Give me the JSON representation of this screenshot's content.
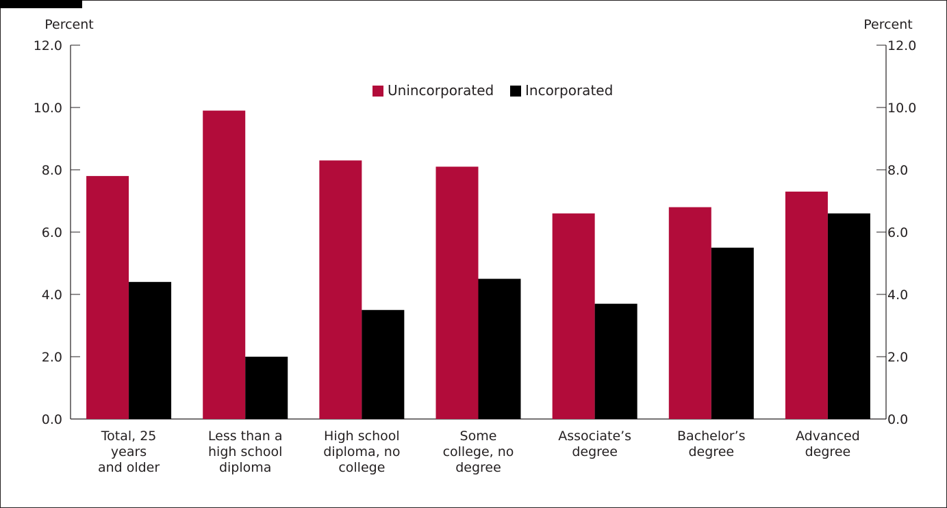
{
  "chart_data": {
    "type": "bar",
    "y_unit_left": "Percent",
    "y_unit_right": "Percent",
    "ylim": [
      0,
      12
    ],
    "yticks": [
      "0.0",
      "2.0",
      "4.0",
      "6.0",
      "8.0",
      "10.0",
      "12.0"
    ],
    "categories": [
      [
        "Total, 25",
        "years",
        "and older"
      ],
      [
        "Less than a",
        "high school",
        "diploma"
      ],
      [
        "High school",
        "diploma, no",
        "college"
      ],
      [
        "Some",
        "college, no",
        "degree"
      ],
      [
        "Associate’s",
        "degree"
      ],
      [
        "Bachelor’s",
        "degree"
      ],
      [
        "Advanced",
        "degree"
      ]
    ],
    "series": [
      {
        "name": "Unincorporated",
        "color": "#b20c3a",
        "values": [
          7.8,
          9.9,
          8.3,
          8.1,
          6.6,
          6.8,
          7.3
        ]
      },
      {
        "name": "Incorporated",
        "color": "#000000",
        "values": [
          4.4,
          2.0,
          3.5,
          4.5,
          3.7,
          5.5,
          6.6
        ]
      }
    ],
    "legend_position": "top-center",
    "grid": false
  }
}
